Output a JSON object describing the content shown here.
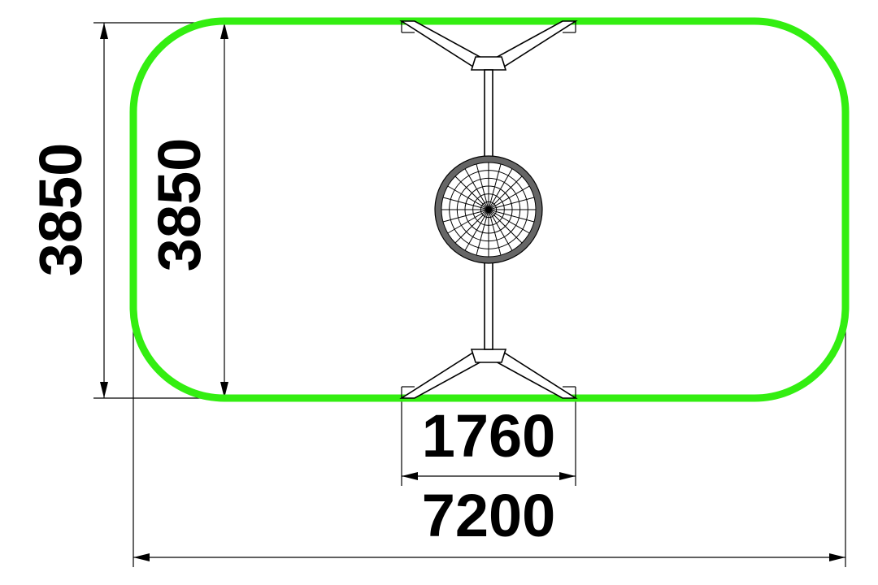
{
  "dimensions": {
    "outer_height": "3850",
    "inner_height": "3850",
    "frame_width": "1760",
    "total_width": "7200"
  },
  "colors": {
    "safety_zone": "#33ee11",
    "lines": "#000000",
    "net_fill": "#666666"
  },
  "icons": {
    "net": "spider-web-net-icon",
    "frame": "swing-frame-icon"
  }
}
